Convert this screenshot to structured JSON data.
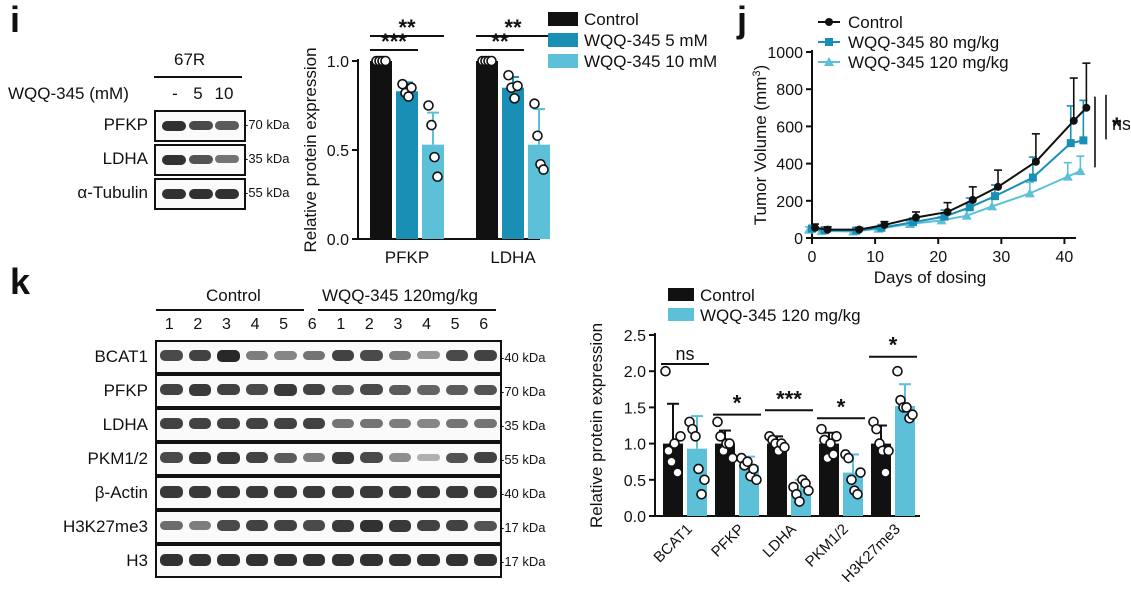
{
  "panels": {
    "i": "i",
    "j": "j",
    "k": "k"
  },
  "blot_i": {
    "cell_line": "67R",
    "treatment_label": "WQQ-345 (mM)",
    "doses": [
      "-",
      "5",
      "10"
    ],
    "rows": [
      {
        "name": "PFKP",
        "kda": "70 kDa",
        "levels": [
          0.95,
          0.8,
          0.7
        ]
      },
      {
        "name": "LDHA",
        "kda": "35 kDa",
        "levels": [
          0.95,
          0.75,
          0.55
        ]
      },
      {
        "name": "α-Tubulin",
        "kda": "55 kDa",
        "levels": [
          0.95,
          0.95,
          0.95
        ]
      }
    ]
  },
  "blot_k": {
    "groups": [
      {
        "label": "Control"
      },
      {
        "label": "WQQ-345 120mg/kg"
      }
    ],
    "lanes": [
      "1",
      "2",
      "3",
      "4",
      "5",
      "6",
      "1",
      "2",
      "3",
      "4",
      "5",
      "6"
    ],
    "rows": [
      {
        "name": "BCAT1",
        "kda": "40 kDa",
        "levels": [
          0.8,
          0.85,
          1.0,
          0.5,
          0.45,
          0.55,
          0.85,
          0.8,
          0.5,
          0.35,
          0.8,
          0.85
        ]
      },
      {
        "name": "PFKP",
        "kda": "70 kDa",
        "levels": [
          0.85,
          0.9,
          0.85,
          0.8,
          0.9,
          0.85,
          0.75,
          0.8,
          0.7,
          0.65,
          0.7,
          0.75
        ]
      },
      {
        "name": "LDHA",
        "kda": "35 kDa",
        "levels": [
          0.85,
          0.85,
          0.85,
          0.85,
          0.85,
          0.85,
          0.55,
          0.55,
          0.5,
          0.45,
          0.55,
          0.55
        ]
      },
      {
        "name": "PKM1/2",
        "kda": "55 kDa",
        "levels": [
          0.8,
          0.9,
          0.9,
          0.85,
          0.7,
          0.5,
          0.9,
          0.8,
          0.4,
          0.2,
          0.75,
          0.85
        ]
      },
      {
        "name": "β-Actin",
        "kda": "40 kDa",
        "levels": [
          0.9,
          0.9,
          0.9,
          0.9,
          0.9,
          0.9,
          0.9,
          0.9,
          0.9,
          0.9,
          0.9,
          0.9
        ]
      },
      {
        "name": "H3K27me3",
        "kda": "17 kDa",
        "levels": [
          0.6,
          0.5,
          0.8,
          0.85,
          0.85,
          0.8,
          0.9,
          0.95,
          0.9,
          0.85,
          0.85,
          0.75
        ]
      },
      {
        "name": "H3",
        "kda": "17 kDa",
        "levels": [
          0.95,
          0.95,
          0.95,
          0.95,
          0.95,
          0.95,
          0.95,
          0.95,
          0.95,
          0.95,
          0.95,
          0.95
        ]
      }
    ]
  },
  "chart_data": [
    {
      "type": "bar",
      "id": "i_bar",
      "ylabel": "Relative protein expression",
      "ylim": [
        0,
        1.0
      ],
      "yticks": [
        "0.0",
        "0.5",
        "1.0"
      ],
      "categories": [
        "PFKP",
        "LDHA"
      ],
      "series": [
        {
          "name": "Control",
          "color": "#111111",
          "values": [
            1.0,
            1.0
          ],
          "err": [
            0.01,
            0.01
          ],
          "points": [
            [
              1.0,
              1.0,
              1.0,
              1.0
            ],
            [
              1.0,
              1.0,
              1.0,
              1.0
            ]
          ]
        },
        {
          "name": "WQQ-345 5 mM",
          "color": "#1a8fb5",
          "values": [
            0.83,
            0.85
          ],
          "err": [
            0.05,
            0.06
          ],
          "points": [
            [
              0.87,
              0.82,
              0.8,
              0.85
            ],
            [
              0.92,
              0.85,
              0.79,
              0.86
            ]
          ]
        },
        {
          "name": "WQQ-345 10 mM",
          "color": "#5bc0d8",
          "values": [
            0.53,
            0.53
          ],
          "err": [
            0.18,
            0.2
          ],
          "points": [
            [
              0.75,
              0.64,
              0.46,
              0.35
            ],
            [
              0.76,
              0.58,
              0.42,
              0.39
            ]
          ]
        }
      ],
      "significance": [
        {
          "text": "**",
          "pair": [
            0,
            2
          ],
          "cat": 0
        },
        {
          "text": "***",
          "pair": [
            0,
            1
          ],
          "cat": 0
        },
        {
          "text": "**",
          "pair": [
            0,
            2
          ],
          "cat": 1
        },
        {
          "text": "**",
          "pair": [
            0,
            1
          ],
          "cat": 1
        }
      ],
      "legend": "top-right"
    },
    {
      "type": "line",
      "id": "j_line",
      "ylabel": "Tumor Volume (mm³)",
      "ylabel_main": "Tumor Volume (mm",
      "ylabel_sup": "3",
      "ylabel_end": ")",
      "xlabel": "Days of dosing",
      "xlim": [
        0,
        45
      ],
      "ylim": [
        0,
        1000
      ],
      "xticks": [
        "0",
        "10",
        "20",
        "30",
        "40"
      ],
      "yticks": [
        "0",
        "200",
        "400",
        "600",
        "800",
        "1000"
      ],
      "x": [
        0,
        2,
        7,
        11,
        16,
        21,
        25,
        29,
        35,
        41,
        43
      ],
      "series": [
        {
          "name": "Control",
          "color": "#111111",
          "marker": "circle",
          "values": [
            55,
            45,
            45,
            70,
            110,
            140,
            205,
            275,
            410,
            630,
            700
          ],
          "err": [
            20,
            15,
            12,
            18,
            30,
            50,
            70,
            90,
            150,
            230,
            240
          ]
        },
        {
          "name": "WQQ-345 80 mg/kg",
          "color": "#1a8fb5",
          "marker": "square",
          "values": [
            50,
            42,
            40,
            55,
            85,
            115,
            165,
            225,
            325,
            510,
            525
          ],
          "err": [
            18,
            12,
            10,
            15,
            22,
            35,
            50,
            60,
            110,
            200,
            215
          ]
        },
        {
          "name": "WQQ-345 120 mg/kg",
          "color": "#5bc0d8",
          "marker": "triangle",
          "values": [
            45,
            38,
            35,
            50,
            75,
            95,
            120,
            170,
            240,
            330,
            360
          ],
          "err": [
            15,
            10,
            8,
            10,
            15,
            20,
            30,
            40,
            60,
            75,
            80
          ]
        }
      ],
      "significance": [
        {
          "text": "ns"
        },
        {
          "text": "*"
        }
      ],
      "legend": "top-left"
    },
    {
      "type": "bar",
      "id": "k_bar",
      "ylabel": "Relative protein expression",
      "ylim": [
        0,
        2.5
      ],
      "yticks": [
        "0.0",
        "0.5",
        "1.0",
        "1.5",
        "2.0",
        "2.5"
      ],
      "categories": [
        "BCAT1",
        "PFKP",
        "LDHA",
        "PKM1/2",
        "H3K27me3"
      ],
      "series": [
        {
          "name": "Control",
          "color": "#111111",
          "values": [
            1.0,
            1.0,
            1.0,
            1.0,
            1.0
          ],
          "err": [
            0.55,
            0.18,
            0.1,
            0.15,
            0.25
          ],
          "points": [
            [
              2.0,
              0.9,
              0.75,
              1.0,
              0.6,
              1.1
            ],
            [
              1.3,
              1.1,
              0.9,
              1.0,
              1.0,
              0.8
            ],
            [
              1.1,
              1.05,
              1.0,
              0.9,
              1.0,
              0.95
            ],
            [
              1.2,
              1.05,
              0.8,
              1.0,
              0.85,
              1.1
            ],
            [
              1.3,
              1.2,
              1.0,
              0.9,
              0.6,
              0.9
            ]
          ]
        },
        {
          "name": "WQQ-345 120 mg/kg",
          "color": "#5bc0d8",
          "values": [
            0.93,
            0.7,
            0.38,
            0.6,
            1.52
          ],
          "err": [
            0.45,
            0.12,
            0.12,
            0.25,
            0.3
          ],
          "points": [
            [
              1.3,
              1.2,
              1.1,
              0.65,
              0.3,
              0.5
            ],
            [
              0.8,
              0.7,
              0.75,
              0.55,
              0.65,
              0.5
            ],
            [
              0.4,
              0.3,
              0.2,
              0.5,
              0.45,
              0.35
            ],
            [
              0.85,
              0.8,
              0.5,
              0.35,
              0.3,
              0.6
            ],
            [
              2.0,
              1.6,
              1.5,
              1.5,
              1.35,
              1.4
            ]
          ]
        }
      ],
      "significance": [
        {
          "text": "ns",
          "cat": 0
        },
        {
          "text": "*",
          "cat": 1
        },
        {
          "text": "***",
          "cat": 2
        },
        {
          "text": "*",
          "cat": 3
        },
        {
          "text": "*",
          "cat": 4
        }
      ],
      "legend": "top"
    }
  ]
}
